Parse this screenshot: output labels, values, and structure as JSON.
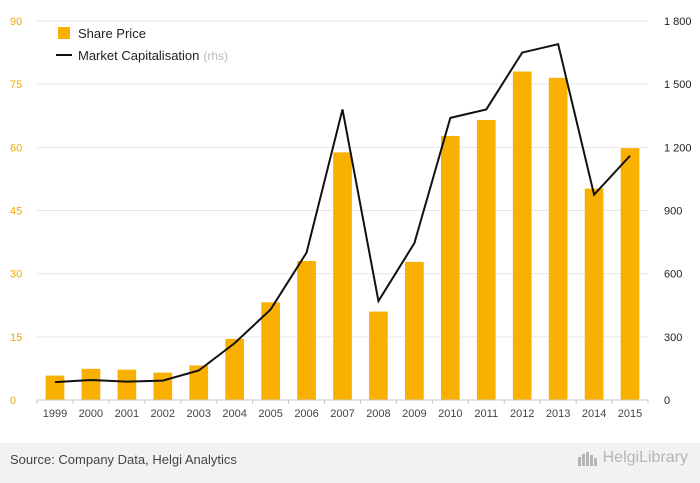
{
  "chart_data": {
    "type": "bar+line",
    "categories": [
      "1999",
      "2000",
      "2001",
      "2002",
      "2003",
      "2004",
      "2005",
      "2006",
      "2007",
      "2008",
      "2009",
      "2010",
      "2011",
      "2012",
      "2013",
      "2014",
      "2015"
    ],
    "series": [
      {
        "name": "Share Price",
        "type": "bar",
        "axis": "left",
        "color": "#f9b000",
        "values": [
          5.8,
          7.4,
          7.2,
          6.5,
          8.2,
          14.5,
          23.2,
          33.0,
          58.8,
          21.0,
          32.8,
          62.7,
          66.5,
          78.0,
          76.5,
          50.2,
          59.8
        ]
      },
      {
        "name": "Market Capitalisation",
        "suffix": "(rhs)",
        "type": "line",
        "axis": "right",
        "color": "#111111",
        "values": [
          85,
          95,
          87,
          92,
          140,
          270,
          430,
          700,
          1380,
          470,
          745,
          1340,
          1380,
          1650,
          1690,
          975,
          1160
        ]
      }
    ],
    "y_left": {
      "min": 0,
      "max": 90,
      "ticks": [
        "0",
        "15",
        "30",
        "45",
        "60",
        "75",
        "90"
      ]
    },
    "y_right": {
      "min": 0,
      "max": 1800,
      "ticks": [
        "0",
        "300",
        "600",
        "900",
        "1 200",
        "1 500",
        "1 800"
      ]
    },
    "legend_position": "top-left",
    "grid": true
  },
  "footer": {
    "source": "Source: Company Data, Helgi Analytics",
    "brand": "HelgiLibrary"
  }
}
